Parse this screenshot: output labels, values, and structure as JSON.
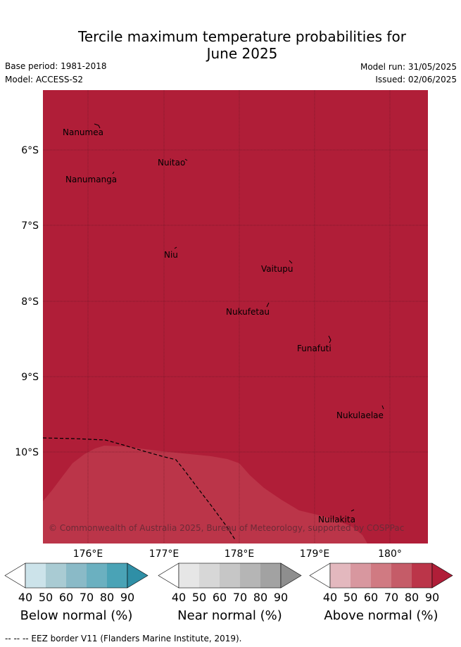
{
  "title_line1": "Tercile maximum temperature probabilities for",
  "title_line2": "June 2025",
  "base_period": "Base period: 1981-2018",
  "model": "Model: ACCESS-S2",
  "model_run": "Model run: 31/05/2025",
  "issued": "Issued: 02/06/2025",
  "copyright": "© Commonwealth of Australia 2025, Bureau of Meteorology, supported by COSPPac",
  "eez_legend": "--  --  -- EEZ border V11 (Flanders Marine Institute, 2019).",
  "lat_ticks": [
    "6°S",
    "7°S",
    "8°S",
    "9°S",
    "10°S"
  ],
  "lon_ticks": [
    "176°E",
    "177°E",
    "178°E",
    "179°E",
    "180°"
  ],
  "islands": [
    "Nanumea",
    "Nuitao",
    "Nanumanga",
    "Niu",
    "Vaitupu",
    "Nukufetau",
    "Funafuti",
    "Nukulaelae",
    "Nuilakita"
  ],
  "colorbars": [
    {
      "label": "Below normal (%)",
      "ticks": [
        "40",
        "50",
        "60",
        "70",
        "80",
        "90"
      ],
      "colors": [
        "#ffffff",
        "#cce3ea",
        "#a9cbd3",
        "#8abac7",
        "#6bb0c0",
        "#4aa3b6",
        "#2f8fa6"
      ]
    },
    {
      "label": "Near normal (%)",
      "ticks": [
        "40",
        "50",
        "60",
        "70",
        "80",
        "90"
      ],
      "colors": [
        "#ffffff",
        "#e6e6e6",
        "#d7d7d7",
        "#c6c6c6",
        "#b5b5b5",
        "#a2a2a2",
        "#8e8e8e"
      ]
    },
    {
      "label": "Above normal (%)",
      "ticks": [
        "40",
        "50",
        "60",
        "70",
        "80",
        "90"
      ],
      "colors": [
        "#ffffff",
        "#e3b8be",
        "#d8979f",
        "#d07a82",
        "#c55c68",
        "#bb3549",
        "#b01e38"
      ]
    }
  ],
  "colors": {
    "field_main": "#b01e38",
    "field_light": "#bb3549"
  }
}
